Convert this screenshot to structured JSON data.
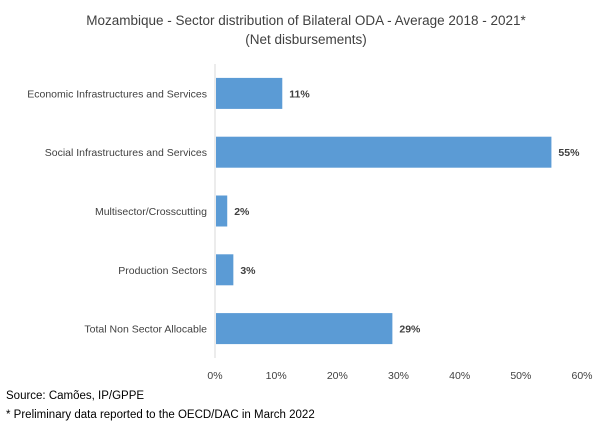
{
  "chart_data": {
    "type": "bar",
    "orientation": "horizontal",
    "title": "Mozambique - Sector distribution of Bilateral ODA - Average 2018 - 2021*",
    "subtitle": "(Net disbursements)",
    "categories": [
      "Economic Infrastructures and Services",
      "Social Infrastructures and Services",
      "Multisector/Crosscutting",
      "Production Sectors",
      "Total Non Sector Allocable"
    ],
    "values": [
      11,
      55,
      2,
      3,
      29
    ],
    "data_labels": [
      "11%",
      "55%",
      "2%",
      "3%",
      "29%"
    ],
    "xlim": [
      0,
      60
    ],
    "xticks": [
      0,
      10,
      20,
      30,
      40,
      50,
      60
    ],
    "xtick_labels": [
      "0%",
      "10%",
      "20%",
      "30%",
      "40%",
      "50%",
      "60%"
    ],
    "xlabel": "",
    "ylabel": "",
    "grid": false,
    "legend": "none",
    "bar_color": "#5b9bd5"
  },
  "notes": {
    "source": "Source: Camões, IP/GPPE",
    "footnote": "* Preliminary data reported to the OECD/DAC in March 2022"
  }
}
